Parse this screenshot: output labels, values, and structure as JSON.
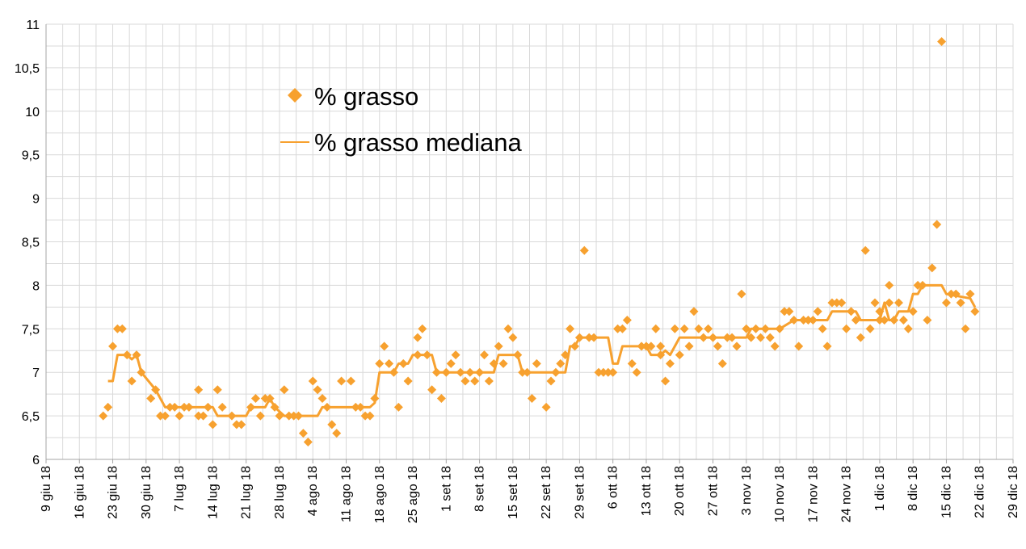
{
  "chart_data": {
    "type": "scatter",
    "title": "",
    "xlabel": "",
    "ylabel": "",
    "xlim": [
      "2018-06-09",
      "2018-12-29"
    ],
    "ylim": [
      6,
      11
    ],
    "grid": true,
    "legend_position": "top-left",
    "x_tick_labels": [
      "9 giu 18",
      "16 giu 18",
      "23 giu 18",
      "30 giu 18",
      "7 lug 18",
      "14 lug 18",
      "21 lug 18",
      "28 lug 18",
      "4 ago 18",
      "11 ago 18",
      "18 ago 18",
      "25 ago 18",
      "1 set 18",
      "8 set 18",
      "15 set 18",
      "22 set 18",
      "29 set 18",
      "6 ott 18",
      "13 ott 18",
      "20 ott 18",
      "27 ott 18",
      "3 nov 18",
      "10 nov 18",
      "17 nov 18",
      "24 nov 18",
      "1 dic 18",
      "8 dic 18",
      "15 dic 18",
      "22 dic 18",
      "29 dic 18"
    ],
    "y_tick_labels": [
      "6",
      "6,5",
      "7",
      "7,5",
      "8",
      "8,5",
      "9",
      "9,5",
      "10",
      "10,5",
      "11"
    ],
    "colors": {
      "series": "#f7a12f",
      "grid": "#d9d9d9",
      "axis": "#a6a6a6"
    },
    "series": [
      {
        "name": "% grasso",
        "kind": "markers",
        "points": [
          [
            "2018-06-21",
            6.5
          ],
          [
            "2018-06-22",
            6.6
          ],
          [
            "2018-06-23",
            7.3
          ],
          [
            "2018-06-24",
            7.5
          ],
          [
            "2018-06-25",
            7.5
          ],
          [
            "2018-06-26",
            7.2
          ],
          [
            "2018-06-27",
            6.9
          ],
          [
            "2018-06-28",
            7.2
          ],
          [
            "2018-06-29",
            7.0
          ],
          [
            "2018-07-01",
            6.7
          ],
          [
            "2018-07-02",
            6.8
          ],
          [
            "2018-07-03",
            6.5
          ],
          [
            "2018-07-04",
            6.5
          ],
          [
            "2018-07-05",
            6.6
          ],
          [
            "2018-07-06",
            6.6
          ],
          [
            "2018-07-07",
            6.5
          ],
          [
            "2018-07-08",
            6.6
          ],
          [
            "2018-07-09",
            6.6
          ],
          [
            "2018-07-11",
            6.5
          ],
          [
            "2018-07-11",
            6.8
          ],
          [
            "2018-07-12",
            6.5
          ],
          [
            "2018-07-13",
            6.6
          ],
          [
            "2018-07-14",
            6.4
          ],
          [
            "2018-07-15",
            6.8
          ],
          [
            "2018-07-16",
            6.6
          ],
          [
            "2018-07-18",
            6.5
          ],
          [
            "2018-07-19",
            6.4
          ],
          [
            "2018-07-20",
            6.4
          ],
          [
            "2018-07-22",
            6.6
          ],
          [
            "2018-07-23",
            6.7
          ],
          [
            "2018-07-24",
            6.5
          ],
          [
            "2018-07-25",
            6.7
          ],
          [
            "2018-07-26",
            6.7
          ],
          [
            "2018-07-27",
            6.6
          ],
          [
            "2018-07-28",
            6.5
          ],
          [
            "2018-07-29",
            6.8
          ],
          [
            "2018-07-30",
            6.5
          ],
          [
            "2018-07-31",
            6.5
          ],
          [
            "2018-08-01",
            6.5
          ],
          [
            "2018-08-02",
            6.3
          ],
          [
            "2018-08-03",
            6.2
          ],
          [
            "2018-08-04",
            6.9
          ],
          [
            "2018-08-05",
            6.8
          ],
          [
            "2018-08-06",
            6.7
          ],
          [
            "2018-08-07",
            6.6
          ],
          [
            "2018-08-08",
            6.4
          ],
          [
            "2018-08-09",
            6.3
          ],
          [
            "2018-08-10",
            6.9
          ],
          [
            "2018-08-12",
            6.9
          ],
          [
            "2018-08-13",
            6.6
          ],
          [
            "2018-08-14",
            6.6
          ],
          [
            "2018-08-15",
            6.5
          ],
          [
            "2018-08-16",
            6.5
          ],
          [
            "2018-08-17",
            6.7
          ],
          [
            "2018-08-18",
            7.1
          ],
          [
            "2018-08-19",
            7.3
          ],
          [
            "2018-08-20",
            7.1
          ],
          [
            "2018-08-21",
            7.0
          ],
          [
            "2018-08-22",
            6.6
          ],
          [
            "2018-08-23",
            7.1
          ],
          [
            "2018-08-24",
            6.9
          ],
          [
            "2018-08-26",
            7.2
          ],
          [
            "2018-08-26",
            7.4
          ],
          [
            "2018-08-27",
            7.5
          ],
          [
            "2018-08-28",
            7.2
          ],
          [
            "2018-08-29",
            6.8
          ],
          [
            "2018-08-30",
            7.0
          ],
          [
            "2018-08-31",
            6.7
          ],
          [
            "2018-09-01",
            7.0
          ],
          [
            "2018-09-02",
            7.1
          ],
          [
            "2018-09-03",
            7.2
          ],
          [
            "2018-09-04",
            7.0
          ],
          [
            "2018-09-05",
            6.9
          ],
          [
            "2018-09-06",
            7.0
          ],
          [
            "2018-09-07",
            6.9
          ],
          [
            "2018-09-08",
            7.0
          ],
          [
            "2018-09-09",
            7.2
          ],
          [
            "2018-09-10",
            6.9
          ],
          [
            "2018-09-11",
            7.1
          ],
          [
            "2018-09-12",
            7.3
          ],
          [
            "2018-09-13",
            7.1
          ],
          [
            "2018-09-14",
            7.5
          ],
          [
            "2018-09-15",
            7.4
          ],
          [
            "2018-09-16",
            7.2
          ],
          [
            "2018-09-17",
            7.0
          ],
          [
            "2018-09-18",
            7.0
          ],
          [
            "2018-09-19",
            6.7
          ],
          [
            "2018-09-20",
            7.1
          ],
          [
            "2018-09-22",
            6.6
          ],
          [
            "2018-09-23",
            6.9
          ],
          [
            "2018-09-24",
            7.0
          ],
          [
            "2018-09-25",
            7.1
          ],
          [
            "2018-09-26",
            7.2
          ],
          [
            "2018-09-27",
            7.5
          ],
          [
            "2018-09-28",
            7.3
          ],
          [
            "2018-09-29",
            7.4
          ],
          [
            "2018-09-30",
            8.4
          ],
          [
            "2018-10-01",
            7.4
          ],
          [
            "2018-10-02",
            7.4
          ],
          [
            "2018-10-03",
            7.0
          ],
          [
            "2018-10-04",
            7.0
          ],
          [
            "2018-10-05",
            7.0
          ],
          [
            "2018-10-06",
            7.0
          ],
          [
            "2018-10-07",
            7.5
          ],
          [
            "2018-10-08",
            7.5
          ],
          [
            "2018-10-09",
            7.6
          ],
          [
            "2018-10-10",
            7.1
          ],
          [
            "2018-10-11",
            7.0
          ],
          [
            "2018-10-12",
            7.3
          ],
          [
            "2018-10-13",
            7.3
          ],
          [
            "2018-10-14",
            7.3
          ],
          [
            "2018-10-15",
            7.5
          ],
          [
            "2018-10-16",
            7.3
          ],
          [
            "2018-10-16",
            7.2
          ],
          [
            "2018-10-17",
            6.9
          ],
          [
            "2018-10-18",
            7.1
          ],
          [
            "2018-10-19",
            7.5
          ],
          [
            "2018-10-20",
            7.2
          ],
          [
            "2018-10-21",
            7.5
          ],
          [
            "2018-10-22",
            7.3
          ],
          [
            "2018-10-23",
            7.7
          ],
          [
            "2018-10-24",
            7.5
          ],
          [
            "2018-10-25",
            7.4
          ],
          [
            "2018-10-26",
            7.5
          ],
          [
            "2018-10-27",
            7.4
          ],
          [
            "2018-10-28",
            7.3
          ],
          [
            "2018-10-29",
            7.1
          ],
          [
            "2018-10-30",
            7.4
          ],
          [
            "2018-10-31",
            7.4
          ],
          [
            "2018-11-01",
            7.3
          ],
          [
            "2018-11-02",
            7.9
          ],
          [
            "2018-11-03",
            7.5
          ],
          [
            "2018-11-04",
            7.4
          ],
          [
            "2018-11-05",
            7.5
          ],
          [
            "2018-11-06",
            7.4
          ],
          [
            "2018-11-07",
            7.5
          ],
          [
            "2018-11-08",
            7.4
          ],
          [
            "2018-11-09",
            7.3
          ],
          [
            "2018-11-10",
            7.5
          ],
          [
            "2018-11-11",
            7.7
          ],
          [
            "2018-11-12",
            7.7
          ],
          [
            "2018-11-13",
            7.6
          ],
          [
            "2018-11-14",
            7.3
          ],
          [
            "2018-11-15",
            7.6
          ],
          [
            "2018-11-16",
            7.6
          ],
          [
            "2018-11-17",
            7.6
          ],
          [
            "2018-11-18",
            7.7
          ],
          [
            "2018-11-19",
            7.5
          ],
          [
            "2018-11-20",
            7.3
          ],
          [
            "2018-11-21",
            7.8
          ],
          [
            "2018-11-22",
            7.8
          ],
          [
            "2018-11-23",
            7.8
          ],
          [
            "2018-11-24",
            7.5
          ],
          [
            "2018-11-25",
            7.7
          ],
          [
            "2018-11-26",
            7.6
          ],
          [
            "2018-11-27",
            7.4
          ],
          [
            "2018-11-28",
            8.4
          ],
          [
            "2018-11-29",
            7.5
          ],
          [
            "2018-11-30",
            7.8
          ],
          [
            "2018-12-01",
            7.6
          ],
          [
            "2018-12-01",
            7.7
          ],
          [
            "2018-12-02",
            7.6
          ],
          [
            "2018-12-03",
            8.0
          ],
          [
            "2018-12-03",
            7.8
          ],
          [
            "2018-12-04",
            7.6
          ],
          [
            "2018-12-05",
            7.8
          ],
          [
            "2018-12-06",
            7.6
          ],
          [
            "2018-12-07",
            7.5
          ],
          [
            "2018-12-08",
            7.7
          ],
          [
            "2018-12-09",
            8.0
          ],
          [
            "2018-12-10",
            8.0
          ],
          [
            "2018-12-11",
            7.6
          ],
          [
            "2018-12-12",
            8.2
          ],
          [
            "2018-12-13",
            8.7
          ],
          [
            "2018-12-14",
            10.8
          ],
          [
            "2018-12-15",
            7.8
          ],
          [
            "2018-12-16",
            7.9
          ],
          [
            "2018-12-17",
            7.9
          ],
          [
            "2018-12-18",
            7.8
          ],
          [
            "2018-12-19",
            7.5
          ],
          [
            "2018-12-20",
            7.9
          ],
          [
            "2018-12-21",
            7.7
          ]
        ]
      },
      {
        "name": "% grasso mediana",
        "kind": "line",
        "points": [
          [
            "2018-06-22",
            6.9
          ],
          [
            "2018-06-23",
            6.9
          ],
          [
            "2018-06-24",
            7.2
          ],
          [
            "2018-06-26",
            7.2
          ],
          [
            "2018-06-27",
            7.15
          ],
          [
            "2018-06-28",
            7.2
          ],
          [
            "2018-06-29",
            7.0
          ],
          [
            "2018-07-02",
            6.8
          ],
          [
            "2018-07-04",
            6.6
          ],
          [
            "2018-07-10",
            6.6
          ],
          [
            "2018-07-11",
            6.6
          ],
          [
            "2018-07-14",
            6.6
          ],
          [
            "2018-07-15",
            6.5
          ],
          [
            "2018-07-21",
            6.5
          ],
          [
            "2018-07-22",
            6.6
          ],
          [
            "2018-07-25",
            6.6
          ],
          [
            "2018-07-26",
            6.7
          ],
          [
            "2018-07-27",
            6.6
          ],
          [
            "2018-07-29",
            6.5
          ],
          [
            "2018-08-05",
            6.5
          ],
          [
            "2018-08-06",
            6.6
          ],
          [
            "2018-08-16",
            6.6
          ],
          [
            "2018-08-17",
            6.65
          ],
          [
            "2018-08-18",
            7.0
          ],
          [
            "2018-08-21",
            7.0
          ],
          [
            "2018-08-22",
            7.1
          ],
          [
            "2018-08-24",
            7.1
          ],
          [
            "2018-08-25",
            7.2
          ],
          [
            "2018-08-29",
            7.2
          ],
          [
            "2018-08-30",
            7.0
          ],
          [
            "2018-09-11",
            7.0
          ],
          [
            "2018-09-12",
            7.2
          ],
          [
            "2018-09-16",
            7.2
          ],
          [
            "2018-09-17",
            7.0
          ],
          [
            "2018-09-26",
            7.0
          ],
          [
            "2018-09-27",
            7.3
          ],
          [
            "2018-09-28",
            7.3
          ],
          [
            "2018-09-29",
            7.4
          ],
          [
            "2018-10-05",
            7.4
          ],
          [
            "2018-10-06",
            7.1
          ],
          [
            "2018-10-07",
            7.1
          ],
          [
            "2018-10-08",
            7.3
          ],
          [
            "2018-10-13",
            7.3
          ],
          [
            "2018-10-14",
            7.2
          ],
          [
            "2018-10-16",
            7.2
          ],
          [
            "2018-10-17",
            7.25
          ],
          [
            "2018-10-18",
            7.2
          ],
          [
            "2018-10-19",
            7.3
          ],
          [
            "2018-10-20",
            7.4
          ],
          [
            "2018-11-03",
            7.4
          ],
          [
            "2018-11-04",
            7.5
          ],
          [
            "2018-11-10",
            7.5
          ],
          [
            "2018-11-13",
            7.6
          ],
          [
            "2018-11-20",
            7.6
          ],
          [
            "2018-11-21",
            7.7
          ],
          [
            "2018-11-26",
            7.7
          ],
          [
            "2018-11-27",
            7.6
          ],
          [
            "2018-12-01",
            7.6
          ],
          [
            "2018-12-02",
            7.8
          ],
          [
            "2018-12-03",
            7.6
          ],
          [
            "2018-12-04",
            7.6
          ],
          [
            "2018-12-05",
            7.7
          ],
          [
            "2018-12-07",
            7.7
          ],
          [
            "2018-12-08",
            7.9
          ],
          [
            "2018-12-09",
            7.9
          ],
          [
            "2018-12-10",
            8.0
          ],
          [
            "2018-12-14",
            8.0
          ],
          [
            "2018-12-15",
            7.9
          ],
          [
            "2018-12-20",
            7.85
          ],
          [
            "2018-12-21",
            7.75
          ]
        ]
      }
    ]
  }
}
